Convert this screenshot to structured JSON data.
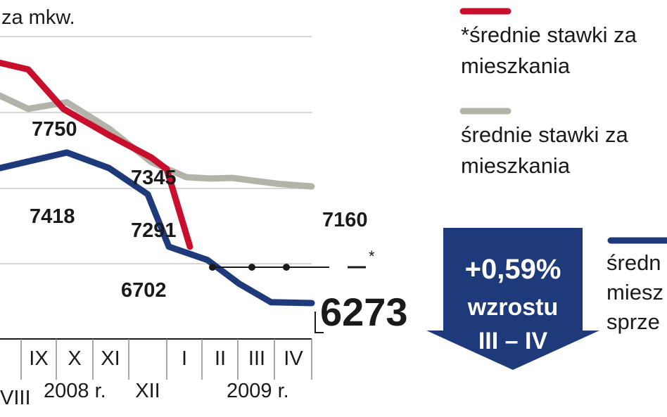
{
  "chart_data": {
    "type": "line",
    "unit_label": "za mkw.",
    "y_range": [
      6000,
      8300
    ],
    "gridlines": [
      8000,
      7500,
      7000,
      6500
    ],
    "month_ticks": [
      "IX",
      "X",
      "XI",
      "XII",
      "I",
      "II",
      "III",
      "IV"
    ],
    "partial_tick": "VIII",
    "year_labels": [
      "2008 r.",
      "2009 r."
    ],
    "series": [
      {
        "key": "red",
        "color": "#c8102e",
        "values": [
          8100,
          8050,
          7750,
          7550,
          7380,
          7291,
          6702
        ]
      },
      {
        "key": "gray",
        "color": "#b3b3aa",
        "values": [
          7850,
          7750,
          7800,
          7600,
          7345,
          7230,
          7220,
          7225,
          7180,
          7160
        ]
      },
      {
        "key": "blue",
        "color": "#1f3a7a",
        "values": [
          7300,
          7350,
          7418,
          7300,
          7100,
          6702,
          6600,
          6420,
          6280,
          6273
        ]
      }
    ],
    "value_labels": {
      "red_peak": "7750",
      "gray_mid": "7345",
      "blue_peak": "7418",
      "red_last": "7291",
      "blue_mid": "6702",
      "gray_end": "7160",
      "blue_end": "6273"
    },
    "dotted_marker": "*"
  },
  "legend": {
    "red_text_1": "*średnie stawki za",
    "red_text_2": "mieszkania",
    "gray_text_1": "średnie stawki za",
    "gray_text_2": "mieszkania",
    "blue_text_1": "średn",
    "blue_text_2": "miesz",
    "blue_text_3": "sprze"
  },
  "badge": {
    "percent": "+0,59%",
    "word": "wzrostu",
    "range": "III – IV",
    "color": "#1f3a7a"
  }
}
